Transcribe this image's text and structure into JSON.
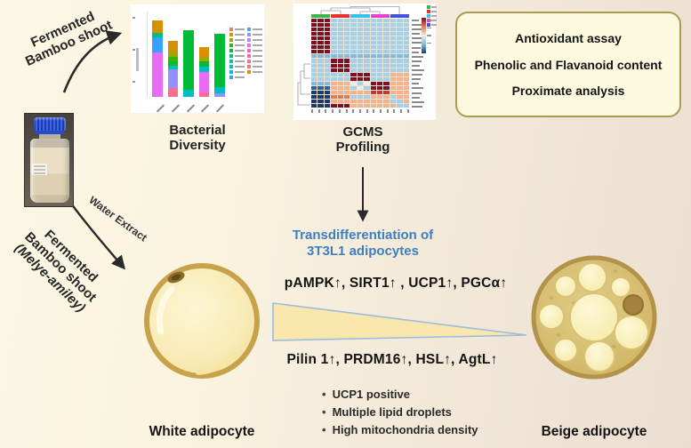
{
  "top_left_label": {
    "line1": "Fermented",
    "line2": "Bamboo shoot"
  },
  "bacterial_diversity_caption": {
    "line1": "Bacterial",
    "line2": "Diversity"
  },
  "gcms_caption": {
    "line1": "GCMS",
    "line2": "Profiling"
  },
  "assay_box": {
    "items": [
      "Antioxidant assay",
      "Phenolic and Flavanoid content",
      "Proximate analysis"
    ],
    "background": "#fcf9df",
    "border_color": "#ab9b50"
  },
  "water_extract_label": "Water Extract",
  "bottom_left_label": {
    "line1": "Fermented",
    "line2": "Bamboo shoot",
    "line3": "(Melye-amiley)"
  },
  "transdifferentiation": {
    "line1": "Transdifferentiation of",
    "line2": "3T3L1 adipocytes",
    "color": "#3e7fc1"
  },
  "markers_up": "pAMPK↑,  SIRT1↑ , UCP1↑, PGCα↑",
  "markers_down": "Pilin 1↑, PRDM16↑, HSL↑, AgtL↑",
  "bullets": [
    "UCP1 positive",
    "Multiple lipid droplets",
    "High mitochondria density"
  ],
  "white_adipocyte_label": "White adipocyte",
  "beige_adipocyte_label": "Beige adipocyte",
  "accent_colors": {
    "triangle_fill": "#f9e7ae",
    "triangle_border": "#9cbcdb",
    "arrow": "#2a2a2a"
  },
  "chart_data": [
    {
      "type": "bar",
      "title": "Bacterial Diversity (stacked relative-abundance bar chart)",
      "categories": [
        "",
        "",
        "",
        "",
        ""
      ],
      "legibility_note": "axis tick labels, y-axis title and legend taxa names are illegible at source resolution; segment values estimated as % of plot height",
      "bars": [
        {
          "segments": [
            {
              "color": "#e76bf3",
              "value": 52
            },
            {
              "color": "#35a2ff",
              "value": 18
            },
            {
              "color": "#00bf7d",
              "value": 5
            },
            {
              "color": "#d89000",
              "value": 15
            }
          ]
        },
        {
          "segments": [
            {
              "color": "#ff6c90",
              "value": 10
            },
            {
              "color": "#9590ff",
              "value": 22
            },
            {
              "color": "#00c1a3",
              "value": 4
            },
            {
              "color": "#00ba38",
              "value": 6
            },
            {
              "color": "#39b600",
              "value": 5
            },
            {
              "color": "#a3a500",
              "value": 7
            },
            {
              "color": "#d89000",
              "value": 12
            }
          ]
        },
        {
          "segments": [
            {
              "color": "#00bfc4",
              "value": 8
            },
            {
              "color": "#00ba38",
              "value": 70
            }
          ]
        },
        {
          "segments": [
            {
              "color": "#ff6c90",
              "value": 5
            },
            {
              "color": "#e76bf3",
              "value": 24
            },
            {
              "color": "#00bfc4",
              "value": 6
            },
            {
              "color": "#00ba38",
              "value": 7
            },
            {
              "color": "#a3a500",
              "value": 5
            },
            {
              "color": "#d89000",
              "value": 11
            }
          ]
        },
        {
          "segments": [
            {
              "color": "#9590ff",
              "value": 4
            },
            {
              "color": "#00bfc4",
              "value": 8
            },
            {
              "color": "#00ba38",
              "value": 62
            }
          ]
        }
      ],
      "legend_swatches_col1": [
        "#f8766d",
        "#d89000",
        "#a3a500",
        "#39b600",
        "#00ba38",
        "#00bf7d",
        "#00c1a3",
        "#00bfc4",
        "#00b4ef",
        "#35a2ff"
      ],
      "legend_swatches_col2": [
        "#529eff",
        "#9590ff",
        "#b983ff",
        "#e76bf3",
        "#fd61d1",
        "#ff67a4",
        "#ff6c90",
        "#f8766d",
        "#d89000"
      ],
      "ylim": [
        0,
        100
      ]
    },
    {
      "type": "heatmap",
      "title": "GCMS Profiling (clustered heatmap)",
      "columns": 15,
      "rows": 20,
      "legibility_note": "row metabolite labels and scale numbers are illegible at source resolution; cell colors approximated",
      "column_groups": [
        {
          "color": "#3cb54a",
          "cols": 3
        },
        {
          "color": "#e8312f",
          "cols": 3
        },
        {
          "color": "#35c4e8",
          "cols": 3
        },
        {
          "color": "#e83fd0",
          "cols": 3
        },
        {
          "color": "#4150e0",
          "cols": 3
        }
      ],
      "palette": {
        "D": "#7f0f22",
        "b": "#a9cfe5",
        "B": "#85b9da",
        "N": "#1b3a66",
        "n": "#2f5f96",
        "o": "#f2b38d",
        "O": "#e07b55",
        "R": "#c0392b",
        "w": "#f2ece4"
      },
      "cells": [
        "DDDbbbbbbbbbbbb",
        "DDDbbbbbbbbbbbb",
        "DDDbbbbbbbbbbbb",
        "DDDbbbbbbbbbbbb",
        "DDDbbbbbbbbbbbb",
        "DDDbbbbbbbbbbbb",
        "DDDbbbbbbbbbbbb",
        "DDDbbbbbbbbbbbb",
        "BBBBBBBBBBBBBBB",
        "bbbDDDbbbbbbbbb",
        "bbbDDDbbbbbbbbb",
        "bbbDDDbbbbbbbbb",
        "bbbbbbDDDbbbooo",
        "bbbbbbDDDbbbooo",
        "BBBooowbwDDDooo",
        "nnnooobwbDDDooo",
        "NNNooooooRRRooo",
        "NNNOOObbboooboo",
        "NNNooooooooobbo",
        "NNNDDDooooooobb"
      ],
      "colorbar": [
        "#7f0f22",
        "#e07b55",
        "#f2ece4",
        "#85b9da",
        "#1b3a66"
      ]
    }
  ]
}
